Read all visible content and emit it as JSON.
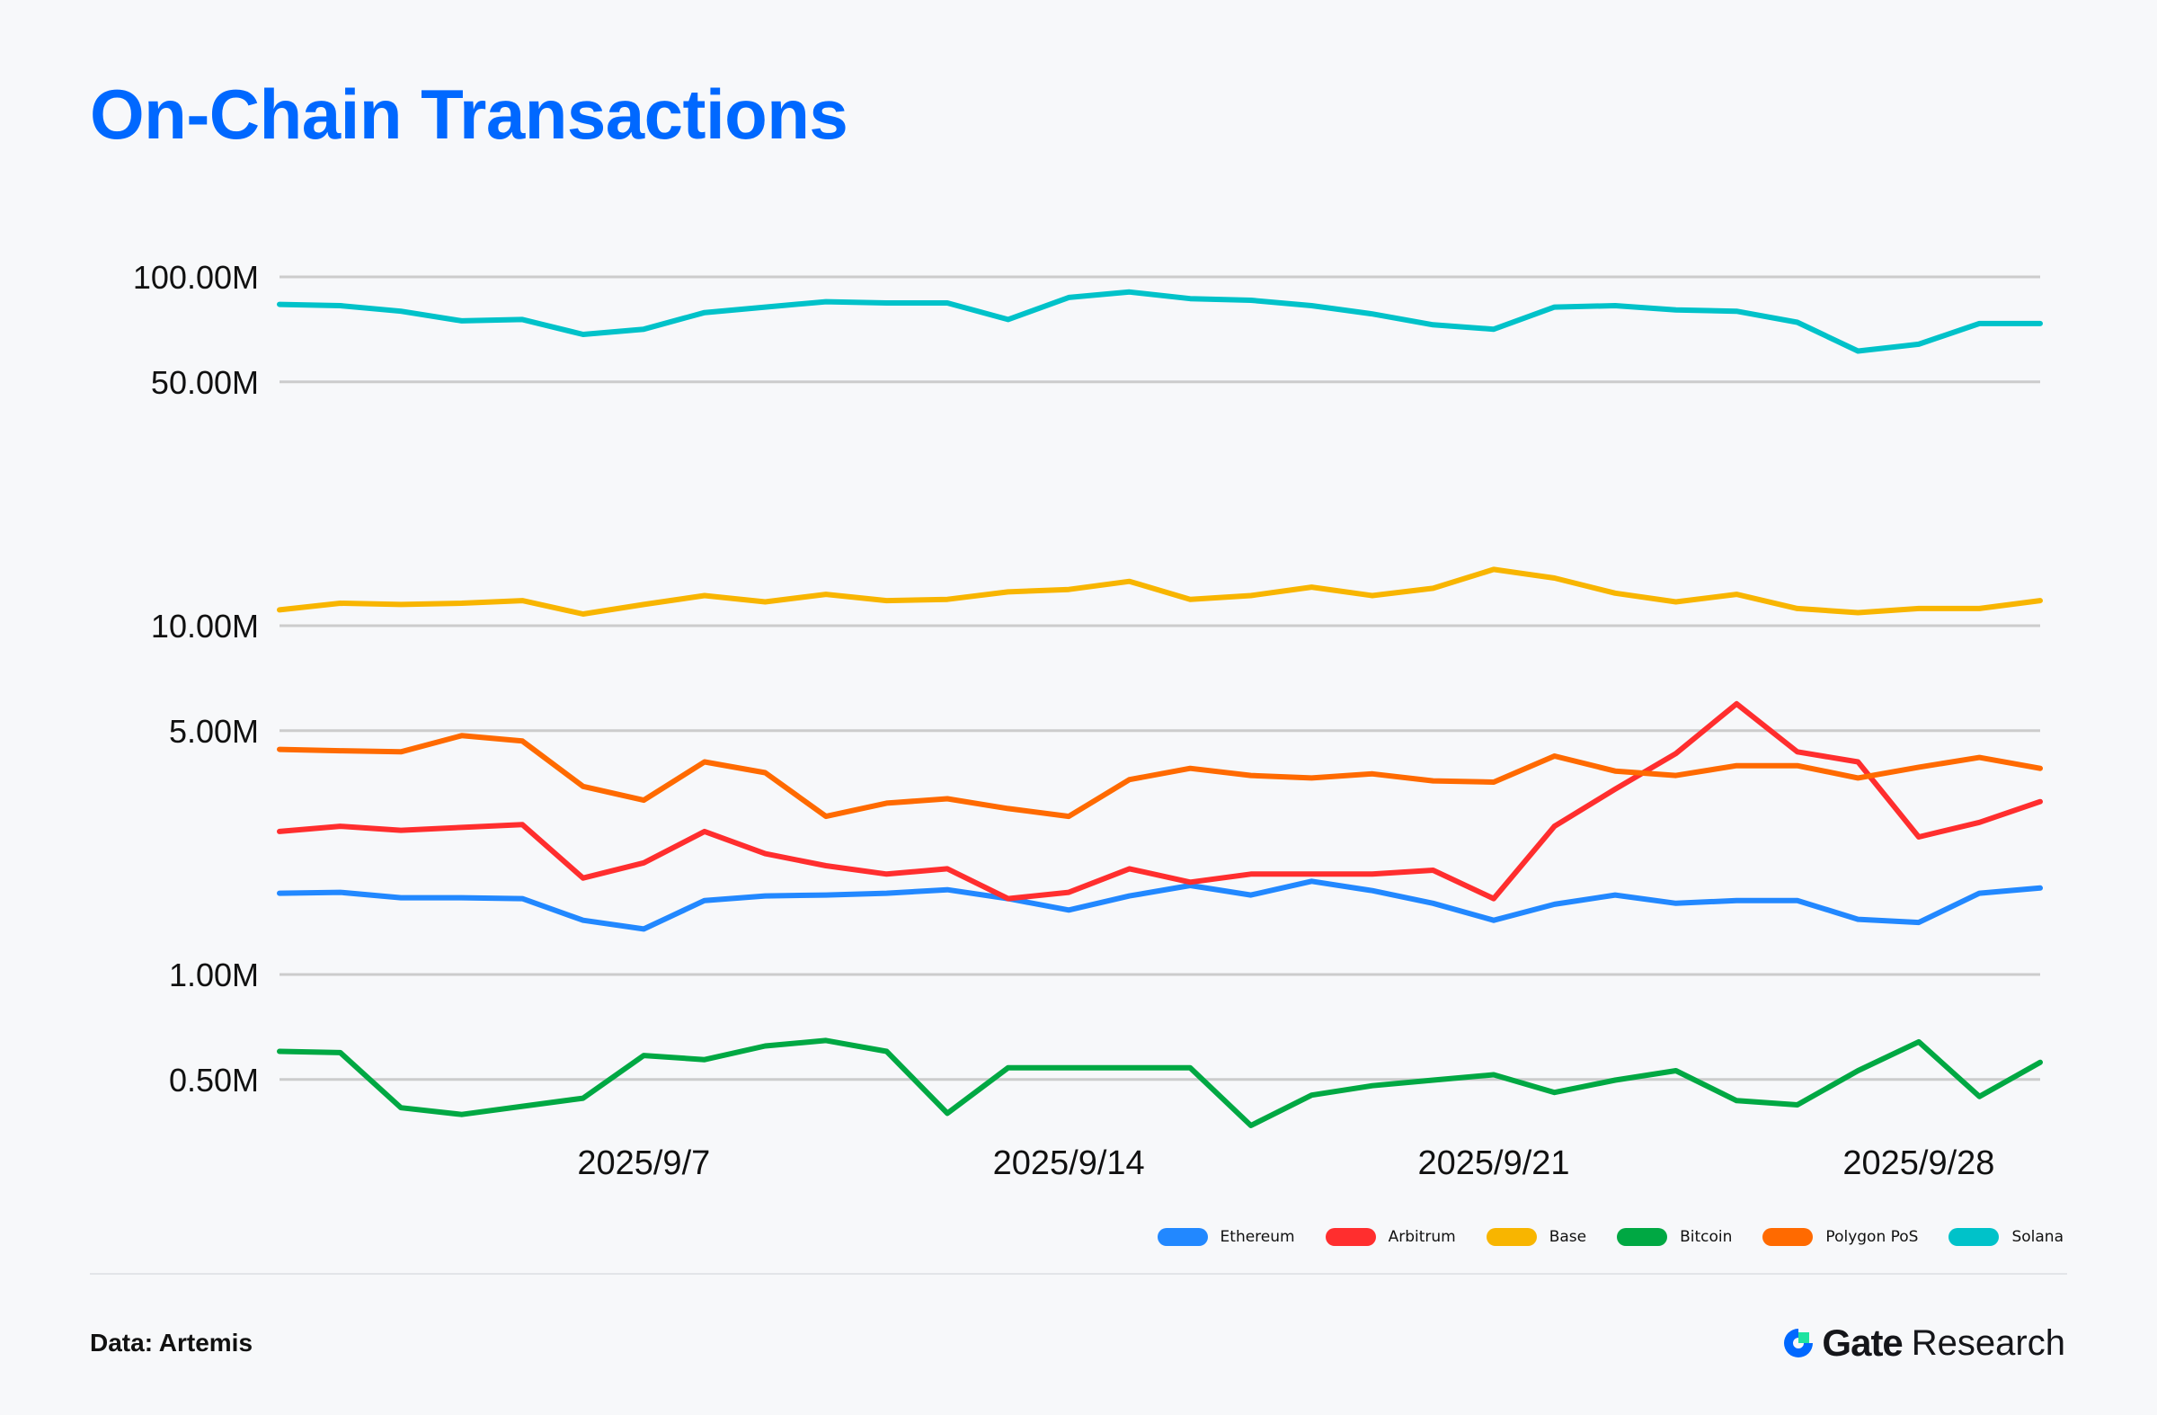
{
  "title": "On-Chain Transactions",
  "footer": {
    "source": "Data: Artemis",
    "brand_gate": "Gate",
    "brand_research": "Research"
  },
  "chart_data": {
    "type": "line",
    "title": "On-Chain Transactions",
    "xlabel": "",
    "ylabel": "",
    "yscale": "log",
    "ylim": [
      0.33,
      100
    ],
    "yunit": "M",
    "grid": true,
    "legend_position": "bottom-right",
    "y_ticks": [
      {
        "value": 100,
        "label": "100.00M"
      },
      {
        "value": 50,
        "label": "50.00M"
      },
      {
        "value": 10,
        "label": "10.00M"
      },
      {
        "value": 5,
        "label": "5.00M"
      },
      {
        "value": 1,
        "label": "1.00M"
      },
      {
        "value": 0.5,
        "label": "0.50M"
      }
    ],
    "x": [
      "2025/9/1",
      "2025/9/2",
      "2025/9/3",
      "2025/9/4",
      "2025/9/5",
      "2025/9/6",
      "2025/9/7",
      "2025/9/8",
      "2025/9/9",
      "2025/9/10",
      "2025/9/11",
      "2025/9/12",
      "2025/9/13",
      "2025/9/14",
      "2025/9/15",
      "2025/9/16",
      "2025/9/17",
      "2025/9/18",
      "2025/9/19",
      "2025/9/20",
      "2025/9/21",
      "2025/9/22",
      "2025/9/23",
      "2025/9/24",
      "2025/9/25",
      "2025/9/26",
      "2025/9/27",
      "2025/9/28",
      "2025/9/29",
      "2025/9/30"
    ],
    "x_ticks": [
      {
        "index": 6,
        "label": "2025/9/7"
      },
      {
        "index": 13,
        "label": "2025/9/14"
      },
      {
        "index": 20,
        "label": "2025/9/21"
      },
      {
        "index": 27,
        "label": "2025/9/28"
      }
    ],
    "series": [
      {
        "name": "Ethereum",
        "color": "#2288ff",
        "values": [
          1.71,
          1.72,
          1.66,
          1.66,
          1.65,
          1.43,
          1.35,
          1.63,
          1.68,
          1.69,
          1.71,
          1.75,
          1.65,
          1.53,
          1.68,
          1.8,
          1.69,
          1.85,
          1.74,
          1.6,
          1.43,
          1.59,
          1.69,
          1.6,
          1.63,
          1.63,
          1.44,
          1.41,
          1.71,
          1.77
        ]
      },
      {
        "name": "Arbitrum",
        "color": "#ff2e2e",
        "values": [
          2.57,
          2.66,
          2.59,
          2.64,
          2.69,
          1.89,
          2.09,
          2.57,
          2.22,
          2.05,
          1.94,
          2.01,
          1.65,
          1.72,
          2.01,
          1.84,
          1.94,
          1.94,
          1.94,
          1.99,
          1.65,
          2.66,
          3.4,
          4.3,
          5.97,
          4.35,
          4.07,
          2.48,
          2.73,
          3.13
        ]
      },
      {
        "name": "Base",
        "color": "#f8b500",
        "values": [
          11.1,
          11.6,
          11.5,
          11.6,
          11.8,
          10.8,
          11.5,
          12.2,
          11.7,
          12.3,
          11.8,
          11.9,
          12.5,
          12.7,
          13.4,
          11.9,
          12.2,
          12.9,
          12.2,
          12.8,
          14.5,
          13.7,
          12.4,
          11.7,
          12.3,
          11.2,
          10.9,
          11.2,
          11.2,
          11.8
        ]
      },
      {
        "name": "Bitcoin",
        "color": "#00a843",
        "values": [
          0.602,
          0.597,
          0.415,
          0.397,
          0.419,
          0.442,
          0.586,
          0.57,
          0.624,
          0.647,
          0.602,
          0.4,
          0.54,
          0.54,
          0.54,
          0.54,
          0.369,
          0.451,
          0.48,
          0.498,
          0.516,
          0.459,
          0.498,
          0.53,
          0.435,
          0.423,
          0.53,
          0.641,
          0.447,
          0.56
        ]
      },
      {
        "name": "Polygon PoS",
        "color": "#ff6a00",
        "values": [
          4.42,
          4.38,
          4.35,
          4.84,
          4.67,
          3.46,
          3.16,
          4.07,
          3.79,
          2.84,
          3.1,
          3.19,
          2.99,
          2.84,
          3.62,
          3.9,
          3.72,
          3.66,
          3.76,
          3.59,
          3.56,
          4.23,
          3.83,
          3.72,
          3.97,
          3.97,
          3.66,
          3.93,
          4.19,
          3.9
        ]
      },
      {
        "name": "Solana",
        "color": "#00c2c9",
        "values": [
          83.4,
          82.7,
          79.7,
          74.8,
          75.5,
          68.4,
          70.8,
          79.0,
          81.9,
          84.9,
          84.2,
          84.2,
          75.5,
          87.3,
          90.5,
          86.6,
          85.7,
          82.7,
          78.3,
          72.9,
          70.8,
          81.9,
          82.7,
          80.4,
          79.7,
          74.1,
          61.3,
          64.1,
          73.5,
          73.5
        ]
      }
    ]
  }
}
